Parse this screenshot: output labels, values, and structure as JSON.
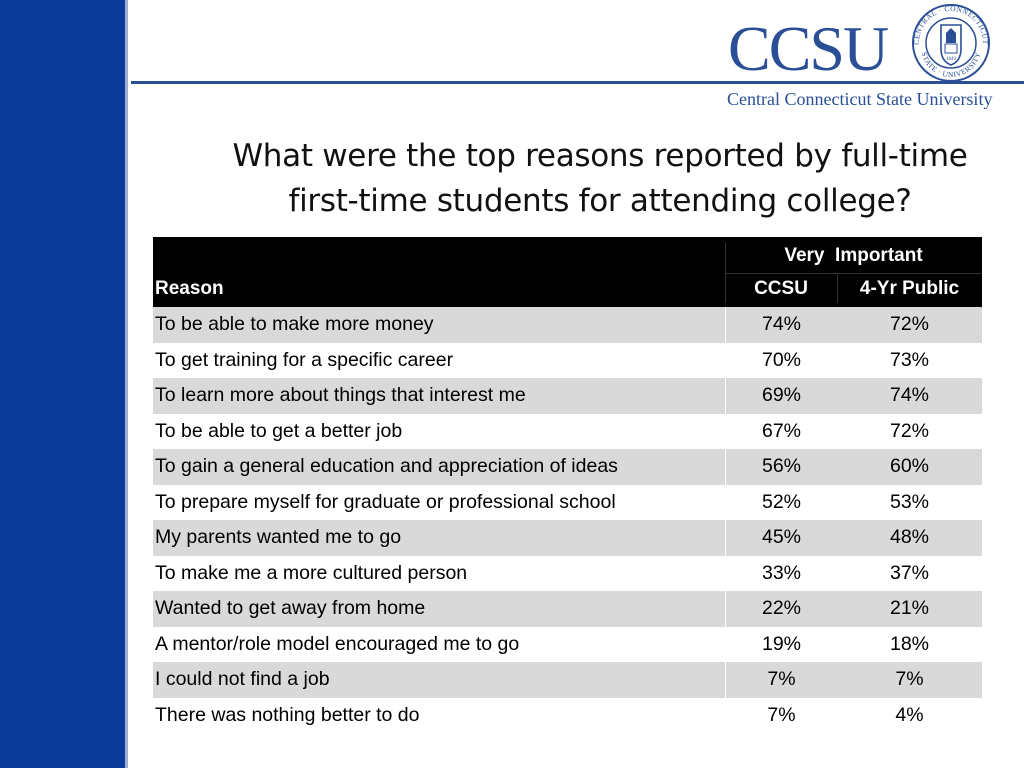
{
  "logo": {
    "wordmark": "CCSU",
    "full_name": "Central Connecticut State University",
    "seal_text_top": "CENTRAL · CONNECTICUT",
    "seal_text_bottom": "STATE · UNIVERSITY",
    "seal_year": "1849"
  },
  "title": "What were the top reasons reported by full-time first-time students for attending college?",
  "table": {
    "header_group": "Very  Important",
    "col_reason": "Reason",
    "col_a": "CCSU",
    "col_b": "4-Yr Public",
    "rows": [
      {
        "reason": "To be able to make more money",
        "a": "74%",
        "b": "72%"
      },
      {
        "reason": "To get training for a specific career",
        "a": "70%",
        "b": "73%"
      },
      {
        "reason": "To learn more about things that interest me",
        "a": "69%",
        "b": "74%"
      },
      {
        "reason": "To be able to get a better job",
        "a": "67%",
        "b": "72%"
      },
      {
        "reason": "To gain a general education and appreciation of ideas",
        "a": "56%",
        "b": "60%"
      },
      {
        "reason": "To prepare myself for graduate or professional school",
        "a": "52%",
        "b": "53%"
      },
      {
        "reason": "My parents wanted me to go",
        "a": "45%",
        "b": "48%"
      },
      {
        "reason": "To make me a more cultured person",
        "a": "33%",
        "b": "37%"
      },
      {
        "reason": "Wanted to get away from home",
        "a": "22%",
        "b": "21%"
      },
      {
        "reason": "A mentor/role model encouraged me to go",
        "a": "19%",
        "b": "18%"
      },
      {
        "reason": "I could not find a job",
        "a": "7%",
        "b": "7%"
      },
      {
        "reason": "There was nothing better to do",
        "a": "7%",
        "b": "4%"
      }
    ]
  },
  "colors": {
    "sidebar": "#0a3a9a",
    "brand": "#2a4f96",
    "header_bg": "#000000",
    "row_shade": "#d9d9d9"
  }
}
